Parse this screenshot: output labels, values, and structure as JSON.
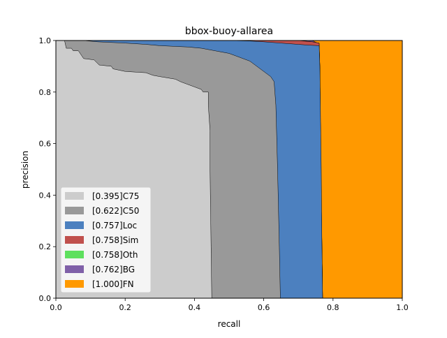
{
  "chart_data": {
    "type": "area",
    "title": "bbox-buoy-allarea",
    "xlabel": "recall",
    "ylabel": "precision",
    "xlim": [
      0,
      1
    ],
    "ylim": [
      0,
      1
    ],
    "xticks": [
      "0.0",
      "0.2",
      "0.4",
      "0.6",
      "0.8",
      "1.0"
    ],
    "yticks": [
      "0.0",
      "0.2",
      "0.4",
      "0.6",
      "0.8",
      "1.0"
    ],
    "legend_position": "lower-left",
    "series": [
      {
        "name": "[0.395]C75",
        "color": "#cccccc",
        "points": [
          [
            0,
            1
          ],
          [
            0.025,
            1
          ],
          [
            0.03,
            0.97
          ],
          [
            0.045,
            0.97
          ],
          [
            0.05,
            0.96
          ],
          [
            0.065,
            0.96
          ],
          [
            0.08,
            0.93
          ],
          [
            0.11,
            0.925
          ],
          [
            0.125,
            0.905
          ],
          [
            0.16,
            0.9
          ],
          [
            0.165,
            0.89
          ],
          [
            0.2,
            0.88
          ],
          [
            0.26,
            0.875
          ],
          [
            0.28,
            0.865
          ],
          [
            0.3,
            0.86
          ],
          [
            0.345,
            0.85
          ],
          [
            0.36,
            0.84
          ],
          [
            0.38,
            0.83
          ],
          [
            0.4,
            0.82
          ],
          [
            0.42,
            0.81
          ],
          [
            0.425,
            0.8
          ],
          [
            0.44,
            0.8
          ],
          [
            0.44,
            0.75
          ],
          [
            0.445,
            0.65
          ],
          [
            0.445,
            0.5
          ],
          [
            0.448,
            0.2
          ],
          [
            0.45,
            0.0
          ]
        ]
      },
      {
        "name": "[0.622]C50",
        "color": "#999999",
        "points": [
          [
            0,
            1
          ],
          [
            0.08,
            1
          ],
          [
            0.12,
            0.995
          ],
          [
            0.2,
            0.99
          ],
          [
            0.26,
            0.985
          ],
          [
            0.3,
            0.98
          ],
          [
            0.38,
            0.975
          ],
          [
            0.42,
            0.97
          ],
          [
            0.46,
            0.96
          ],
          [
            0.5,
            0.95
          ],
          [
            0.52,
            0.94
          ],
          [
            0.56,
            0.92
          ],
          [
            0.6,
            0.88
          ],
          [
            0.62,
            0.86
          ],
          [
            0.63,
            0.84
          ],
          [
            0.635,
            0.75
          ],
          [
            0.64,
            0.5
          ],
          [
            0.645,
            0.2
          ],
          [
            0.648,
            0.0
          ]
        ]
      },
      {
        "name": "[0.757]Loc",
        "color": "#4c80bf",
        "points": [
          [
            0,
            1
          ],
          [
            0.4,
            1
          ],
          [
            0.5,
            1
          ],
          [
            0.56,
            0.998
          ],
          [
            0.6,
            0.995
          ],
          [
            0.65,
            0.99
          ],
          [
            0.7,
            0.985
          ],
          [
            0.73,
            0.982
          ],
          [
            0.76,
            0.98
          ],
          [
            0.762,
            0.9
          ],
          [
            0.764,
            0.7
          ],
          [
            0.766,
            0.5
          ],
          [
            0.768,
            0.2
          ],
          [
            0.77,
            0.0
          ]
        ]
      },
      {
        "name": "[0.758]Sim",
        "color": "#c0504d",
        "points": [
          [
            0,
            1
          ],
          [
            0.7,
            1
          ],
          [
            0.74,
            0.995
          ],
          [
            0.76,
            0.99
          ],
          [
            0.762,
            0.9
          ],
          [
            0.765,
            0.5
          ],
          [
            0.77,
            0.0
          ]
        ]
      },
      {
        "name": "[0.758]Oth",
        "color": "#5ee05e",
        "points": [
          [
            0,
            1
          ],
          [
            0.7,
            1
          ],
          [
            0.74,
            0.995
          ],
          [
            0.76,
            0.99
          ],
          [
            0.762,
            0.9
          ],
          [
            0.765,
            0.5
          ],
          [
            0.77,
            0.0
          ]
        ]
      },
      {
        "name": "[0.762]BG",
        "color": "#7f60a8",
        "points": [
          [
            0,
            1
          ],
          [
            0.74,
            1
          ],
          [
            0.755,
            0.99
          ],
          [
            0.76,
            0.98
          ],
          [
            0.762,
            0.9
          ],
          [
            0.765,
            0.5
          ],
          [
            0.77,
            0.0
          ]
        ]
      },
      {
        "name": "[1.000]FN",
        "color": "#ff9900",
        "points": [
          [
            0,
            1
          ],
          [
            1,
            1
          ],
          [
            1,
            0
          ]
        ]
      }
    ]
  }
}
